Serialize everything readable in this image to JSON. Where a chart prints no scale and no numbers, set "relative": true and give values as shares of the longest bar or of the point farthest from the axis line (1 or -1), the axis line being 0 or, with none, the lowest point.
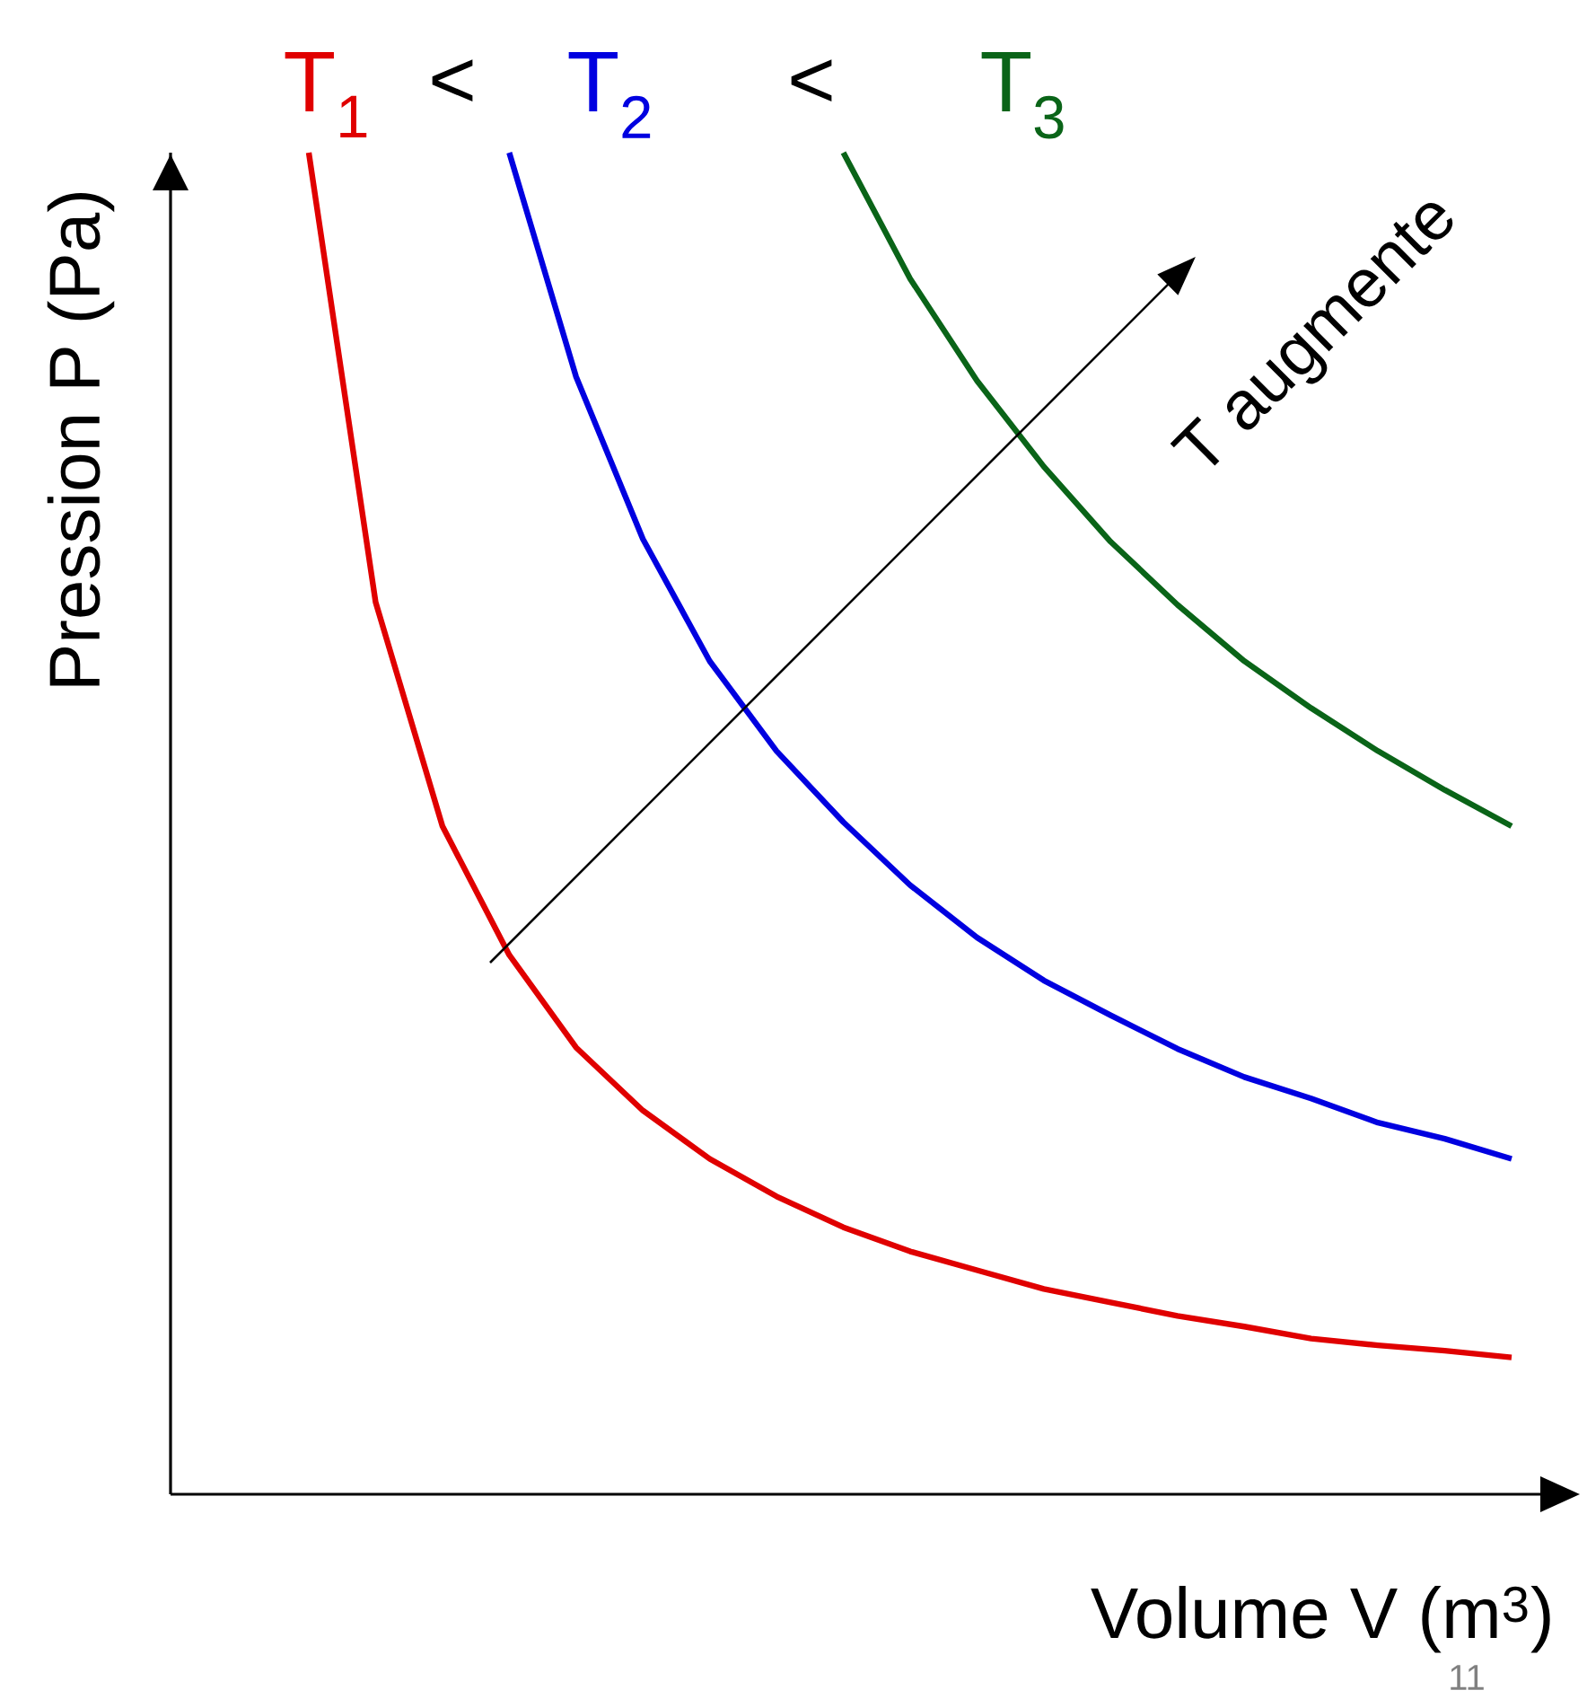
{
  "chart_data": {
    "type": "line",
    "relative": true,
    "xlabel": "Volume V (m$^{3}$)",
    "ylabel": "Pression P (Pa)",
    "marker": "none",
    "line_style": "solid",
    "annotations": [
      "<",
      "<",
      "T augmente",
      "11"
    ],
    "categories": [
      null,
      null,
      null,
      null,
      null,
      null,
      null,
      null,
      null,
      null,
      null,
      null,
      null,
      null,
      null,
      null,
      null,
      null,
      null
    ],
    "series": [
      {
        "name": "T$_{1}$",
        "color": "#e00000",
        "values": [
          1,
          0.665,
          0.498,
          0.402,
          0.333,
          0.286,
          0.25,
          0.222,
          0.199,
          0.181,
          0.167,
          0.153,
          0.143,
          0.133,
          0.125,
          0.116,
          0.111,
          0.107,
          0.102
        ]
      },
      {
        "name": "T$_{2}$",
        "color": "#0000e0",
        "values": [
          null,
          null,
          null,
          1,
          0.833,
          0.712,
          0.621,
          0.554,
          0.501,
          0.454,
          0.415,
          0.383,
          0.357,
          0.332,
          0.311,
          0.295,
          0.277,
          0.265,
          0.25
        ]
      },
      {
        "name": "T$_{3}$",
        "color": "#0a6418",
        "values": [
          null,
          null,
          null,
          null,
          null,
          null,
          null,
          null,
          1,
          0.906,
          0.83,
          0.766,
          0.71,
          0.663,
          0.621,
          0.586,
          0.554,
          0.525,
          0.498
        ]
      }
    ]
  }
}
